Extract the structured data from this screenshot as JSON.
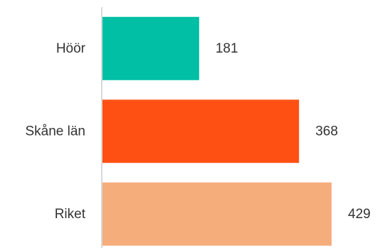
{
  "chart_data": {
    "type": "bar",
    "orientation": "horizontal",
    "categories": [
      "Höör",
      "Skåne län",
      "Riket"
    ],
    "values": [
      181,
      368,
      429
    ],
    "colors": [
      "#00BFA5",
      "#FF5014",
      "#F5AD7C"
    ],
    "xlim": [
      0,
      429
    ],
    "title": "",
    "xlabel": "",
    "ylabel": "",
    "grid": false,
    "legend": "none",
    "axis_color": "#d9d9d9"
  }
}
